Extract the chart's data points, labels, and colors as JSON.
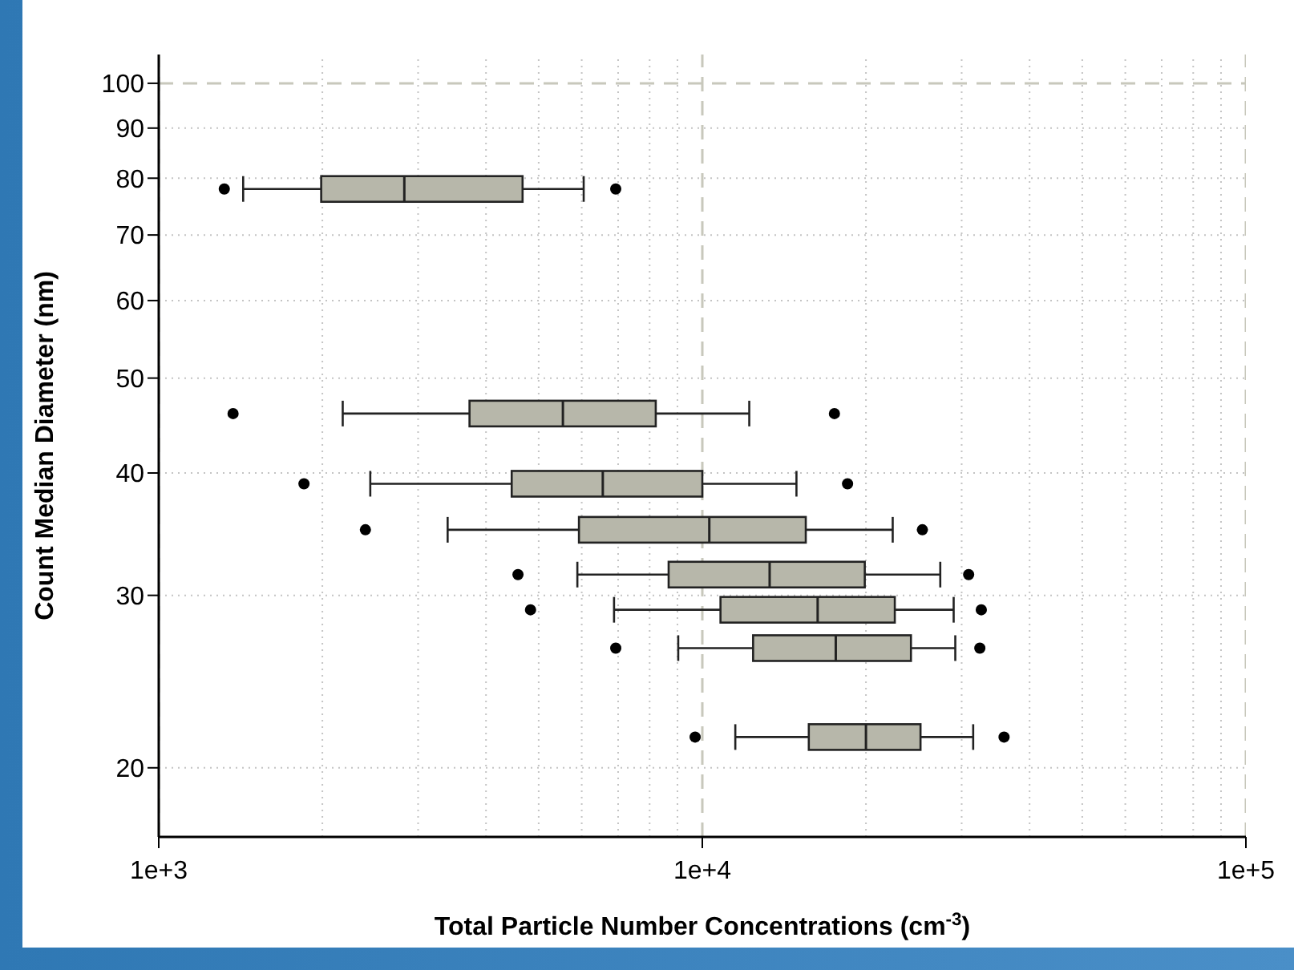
{
  "chart_data": {
    "type": "box",
    "orientation": "horizontal",
    "log": "xy",
    "grid": true,
    "color": "#b7b7aa",
    "xlabel": "Total Particle Number Concentrations (cm$^{-3}$)",
    "ylabel": "Count Median Diameter (nm)",
    "x": [
      78,
      46,
      39,
      35,
      31.5,
      29,
      26.5,
      21.5
    ],
    "xlim": [
      1000,
      100000
    ],
    "xticks": [
      {
        "value": 1000,
        "label": "1e+3"
      },
      {
        "value": 2000,
        "label": null
      },
      {
        "value": 3000,
        "label": null
      },
      {
        "value": 4000,
        "label": null
      },
      {
        "value": 5000,
        "label": null
      },
      {
        "value": 6000,
        "label": null
      },
      {
        "value": 7000,
        "label": null
      },
      {
        "value": 8000,
        "label": null
      },
      {
        "value": 9000,
        "label": null
      },
      {
        "value": 10000,
        "label": "1e+4"
      },
      {
        "value": 20000,
        "label": null
      },
      {
        "value": 30000,
        "label": null
      },
      {
        "value": 40000,
        "label": null
      },
      {
        "value": 50000,
        "label": null
      },
      {
        "value": 60000,
        "label": null
      },
      {
        "value": 70000,
        "label": null
      },
      {
        "value": 80000,
        "label": null
      },
      {
        "value": 90000,
        "label": null
      },
      {
        "value": 100000,
        "label": "1e+5"
      }
    ],
    "ylim": [
      17,
      107
    ],
    "yticks": [
      20,
      30,
      40,
      50,
      60,
      70,
      80,
      90,
      100
    ],
    "boxes": [
      {
        "low": 1430,
        "q1": 1990,
        "median": 2830,
        "q3": 4670,
        "high": 6050,
        "outliers": [
          1320,
          6930
        ]
      },
      {
        "low": 2180,
        "q1": 3730,
        "median": 5540,
        "q3": 8210,
        "high": 12200,
        "outliers": [
          1370,
          17500
        ]
      },
      {
        "low": 2450,
        "q1": 4460,
        "median": 6560,
        "q3": 10000,
        "high": 14900,
        "outliers": [
          1850,
          18500
        ]
      },
      {
        "low": 3400,
        "q1": 5930,
        "median": 10300,
        "q3": 15500,
        "high": 22400,
        "outliers": [
          2400,
          25400
        ]
      },
      {
        "low": 5890,
        "q1": 8670,
        "median": 13300,
        "q3": 19900,
        "high": 27400,
        "outliers": [
          4580,
          30900
        ]
      },
      {
        "low": 6880,
        "q1": 10800,
        "median": 16300,
        "q3": 22600,
        "high": 29000,
        "outliers": [
          4830,
          32600
        ]
      },
      {
        "low": 9030,
        "q1": 12400,
        "median": 17600,
        "q3": 24200,
        "high": 29200,
        "outliers": [
          6930,
          32400
        ]
      },
      {
        "low": 11500,
        "q1": 15700,
        "median": 20000,
        "q3": 25200,
        "high": 31500,
        "outliers": [
          9700,
          35900
        ]
      }
    ]
  }
}
